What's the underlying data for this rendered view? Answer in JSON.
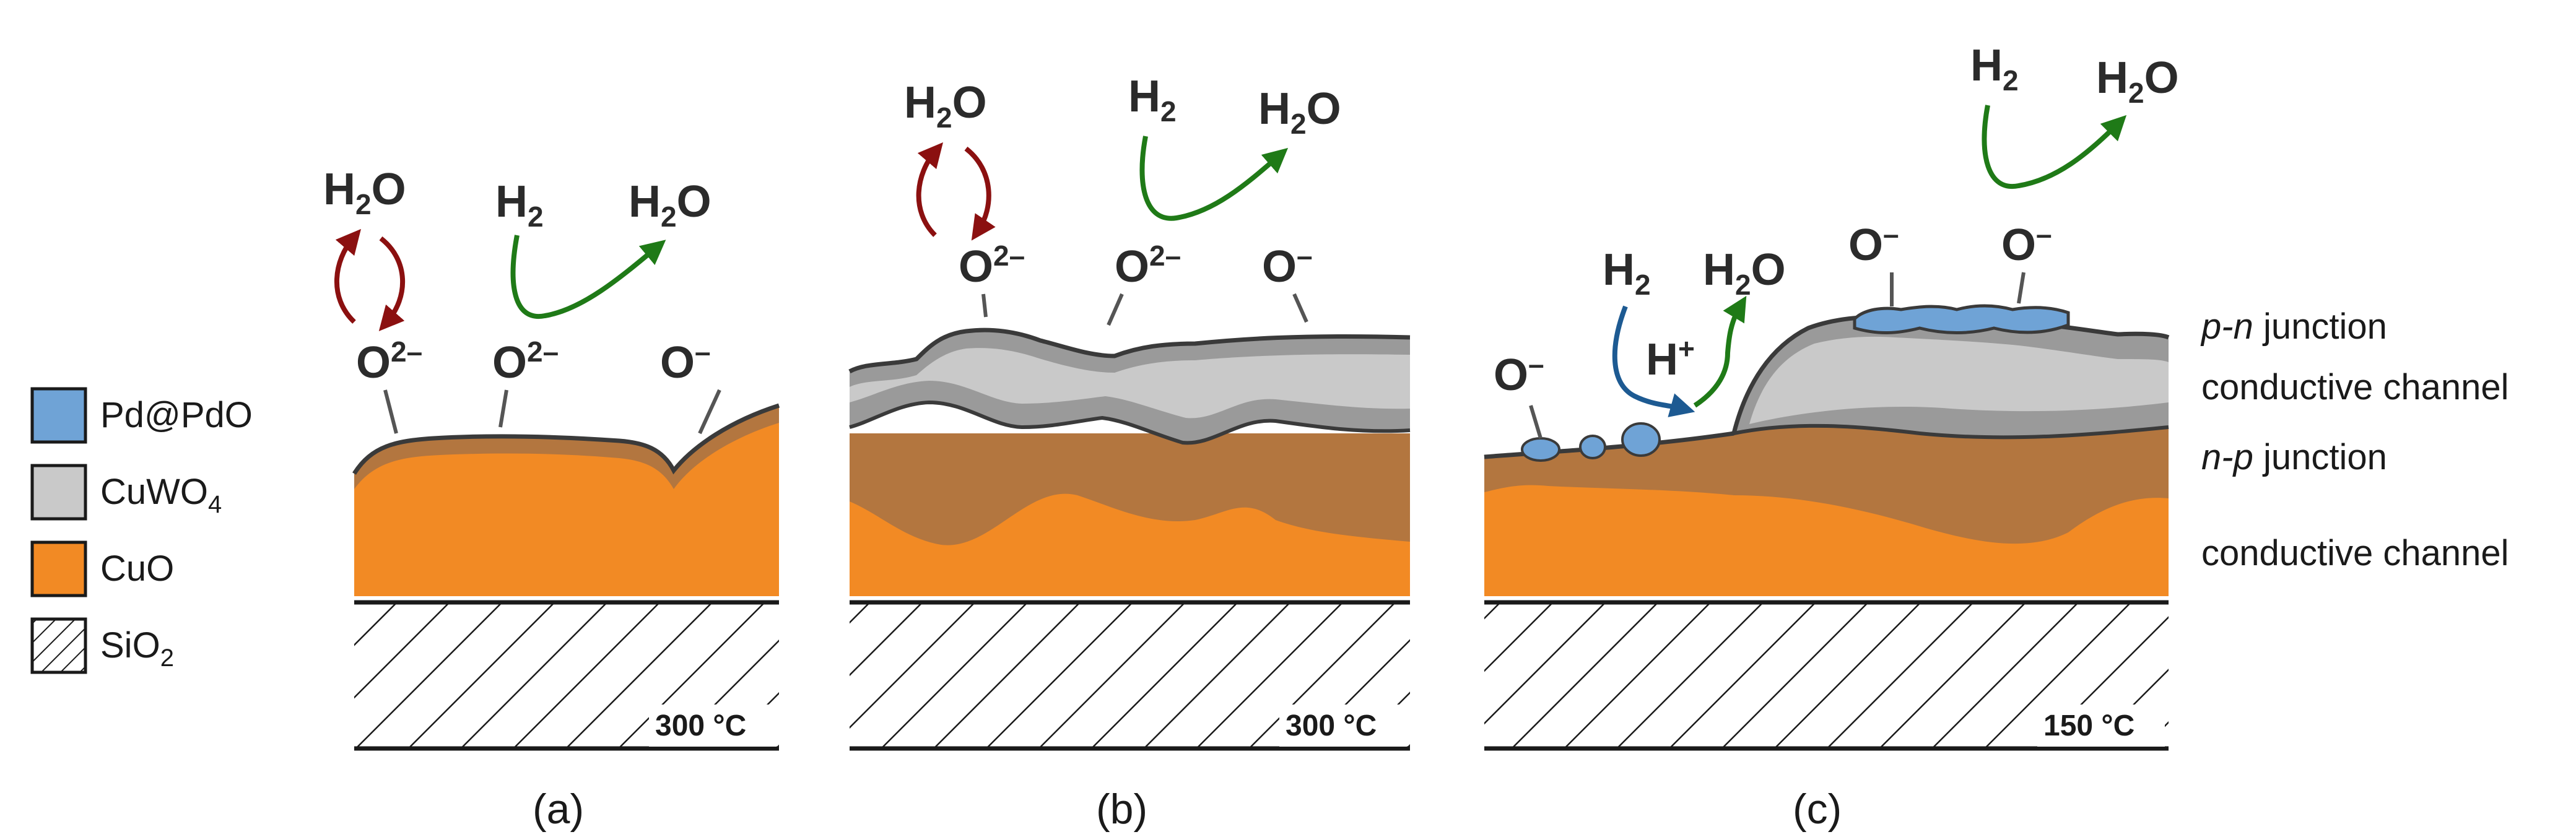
{
  "colors": {
    "pd": "#6fa3d6",
    "cuwo4": "#c9c9c9",
    "cuwo4_dark": "#9a9a9a",
    "cuo": "#f28a24",
    "cuo_dark": "#b3763f",
    "outline": "#3a3a3a",
    "red_arrow": "#8b1010",
    "green_arrow": "#1f7a17",
    "blue_arrow": "#1d5a92"
  },
  "legend": [
    {
      "label": "Pd@PdO",
      "icon": "pd-pdo-swatch"
    },
    {
      "label": "CuWO",
      "sub": "4",
      "icon": "cuwo4-swatch"
    },
    {
      "label": "CuO",
      "icon": "cuo-swatch"
    },
    {
      "label": "SiO",
      "sub": "2",
      "icon": "sio2-hatch-swatch"
    }
  ],
  "panels": {
    "a": {
      "label": "(a)",
      "temperature": "300 °C",
      "species": {
        "o1": "O",
        "o1_sup": "2–",
        "o2": "O",
        "o2_sup": "2–",
        "o3": "O",
        "o3_sup": "–"
      },
      "h2o_left": {
        "main": "H",
        "sub": "2",
        "tail": "O"
      },
      "h2": {
        "main": "H",
        "sub": "2"
      },
      "h2o_right": {
        "main": "H",
        "sub": "2",
        "tail": "O"
      }
    },
    "b": {
      "label": "(b)",
      "temperature": "300 °C",
      "species": {
        "o1": "O",
        "o1_sup": "2–",
        "o2": "O",
        "o2_sup": "2–",
        "o3": "O",
        "o3_sup": "–"
      },
      "h2o_left": {
        "main": "H",
        "sub": "2",
        "tail": "O"
      },
      "h2": {
        "main": "H",
        "sub": "2"
      },
      "h2o_right": {
        "main": "H",
        "sub": "2",
        "tail": "O"
      }
    },
    "c": {
      "label": "(c)",
      "temperature": "150 °C",
      "species": {
        "o_left": "O",
        "o_left_sup": "–",
        "o_mid": "O",
        "o_mid_sup": "–",
        "o_right": "O",
        "o_right_sup": "–"
      },
      "h2_left": {
        "main": "H",
        "sub": "2"
      },
      "h_plus": {
        "main": "H",
        "sup": "+"
      },
      "h2o_mid": {
        "main": "H",
        "sub": "2",
        "tail": "O"
      },
      "h2_top": {
        "main": "H",
        "sub": "2"
      },
      "h2o_top": {
        "main": "H",
        "sub": "2",
        "tail": "O"
      }
    }
  },
  "side_labels": {
    "pn_italic": "p-n",
    "pn_rest": " junction",
    "conductive1": "conductive channel",
    "np_italic": "n-p",
    "np_rest": " junction",
    "conductive2": "conductive channel"
  }
}
